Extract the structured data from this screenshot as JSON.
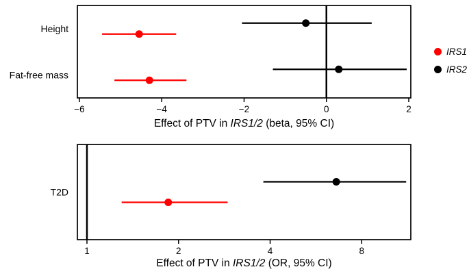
{
  "figure": {
    "legend": {
      "items": [
        {
          "label": "IRS1",
          "color": "#ff0000"
        },
        {
          "label": "IRS2",
          "color": "#000000"
        }
      ]
    }
  },
  "chart_data": [
    {
      "type": "forest",
      "scale": "linear",
      "xlabel_prefix": "Effect of PTV in ",
      "xlabel_gene": "IRS1/2",
      "xlabel_suffix": " (beta, 95% CI)",
      "xlim": [
        -6.05,
        2.05
      ],
      "xticks": [
        -6,
        -4,
        -2,
        0,
        2
      ],
      "ref_line": 0,
      "categories": [
        "Height",
        "Fat-free mass"
      ],
      "series": [
        {
          "name": "IRS2",
          "color": "#000000",
          "est": [
            -0.5,
            0.3
          ],
          "lo": [
            -2.05,
            -1.3
          ],
          "hi": [
            1.1,
            1.95
          ]
        },
        {
          "name": "IRS1",
          "color": "#ff0000",
          "est": [
            -4.55,
            -4.3
          ],
          "lo": [
            -5.45,
            -5.15
          ],
          "hi": [
            -3.65,
            -3.4
          ]
        }
      ]
    },
    {
      "type": "forest",
      "scale": "log",
      "xlabel_prefix": "Effect of PTV in ",
      "xlabel_gene": "IRS1/2",
      "xlabel_suffix": " (OR, 95% CI)",
      "xlim": [
        0.93,
        11.6
      ],
      "xticks": [
        1,
        2,
        4,
        8
      ],
      "ref_line": 1,
      "categories": [
        "T2D"
      ],
      "series": [
        {
          "name": "IRS2",
          "color": "#000000",
          "est": [
            6.6
          ],
          "lo": [
            3.8
          ],
          "hi": [
            11.2
          ]
        },
        {
          "name": "IRS1",
          "color": "#ff0000",
          "est": [
            1.85
          ],
          "lo": [
            1.3
          ],
          "hi": [
            2.9
          ]
        }
      ]
    }
  ]
}
